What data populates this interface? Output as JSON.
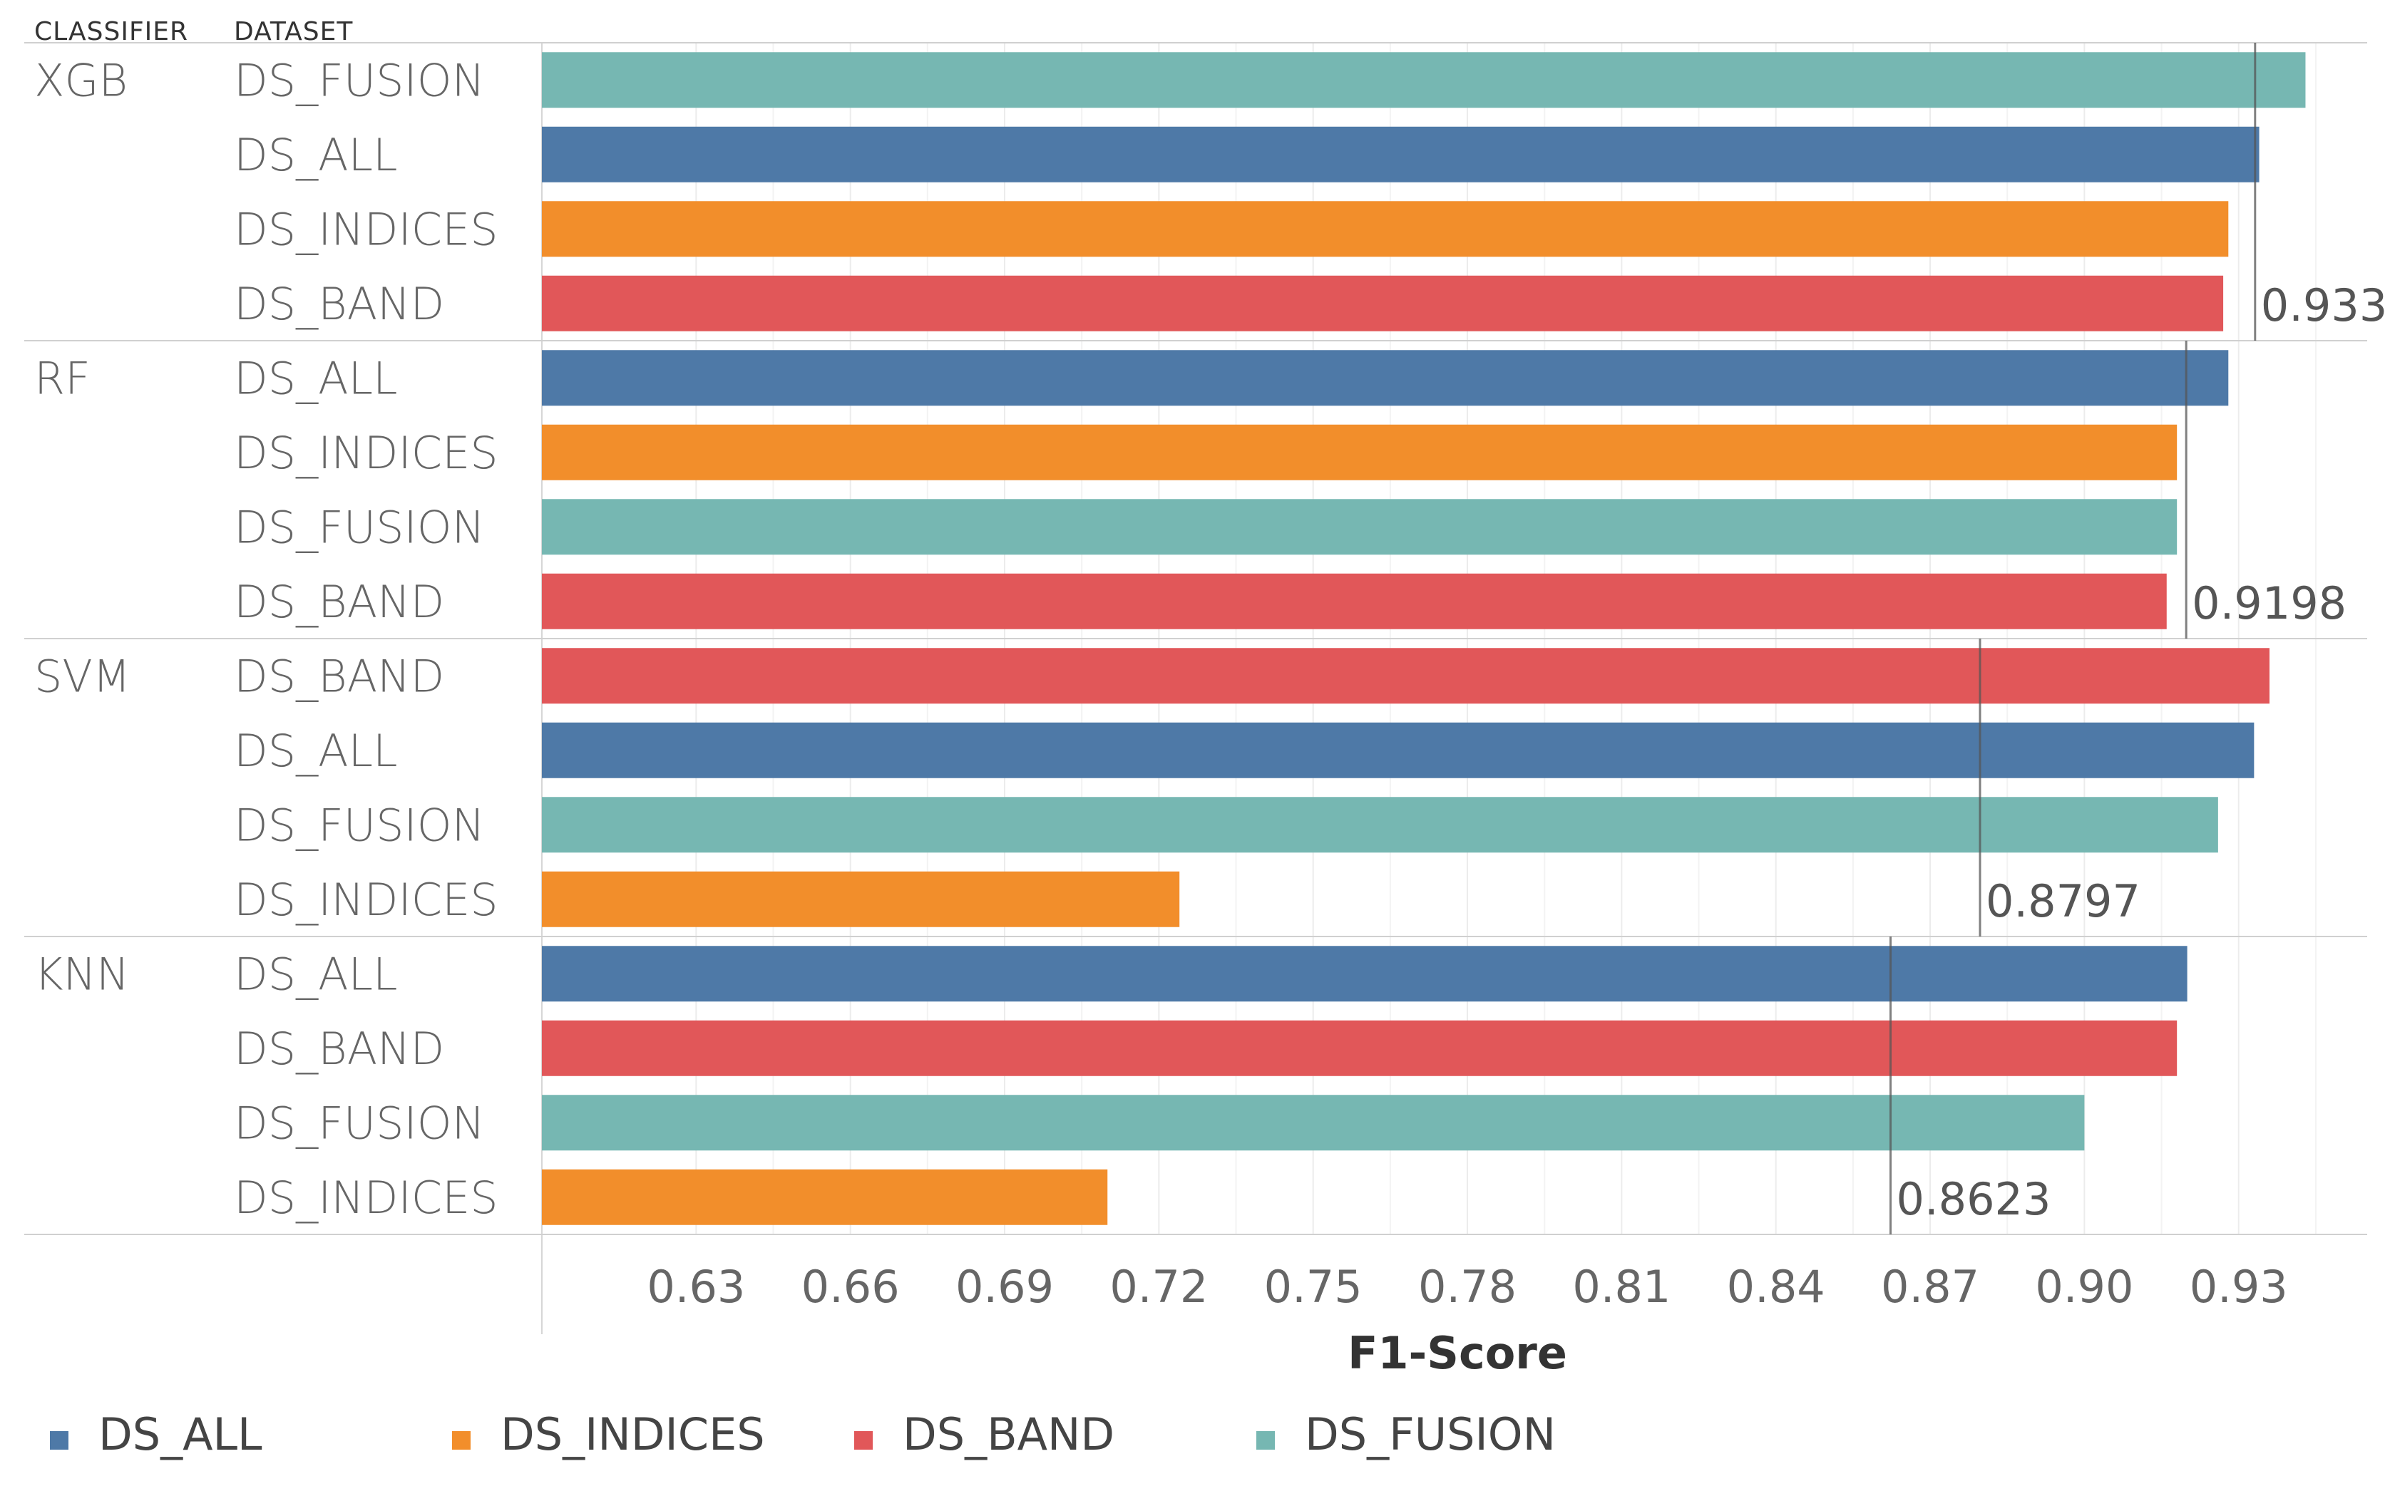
{
  "headers": {
    "classifier": "CLASSIFIER",
    "dataset": "DATASET"
  },
  "chart_data": {
    "type": "bar",
    "orientation": "horizontal",
    "xlabel": "F1-Score",
    "xlim": [
      0.6,
      0.955
    ],
    "xticks": [
      "0.63",
      "0.66",
      "0.69",
      "0.72",
      "0.75",
      "0.78",
      "0.81",
      "0.84",
      "0.87",
      "0.90",
      "0.93"
    ],
    "groups": [
      {
        "classifier": "XGB",
        "reference": 0.9332,
        "reference_label": "0.9332",
        "bars": [
          {
            "dataset": "DS_FUSION",
            "value": 0.943
          },
          {
            "dataset": "DS_ALL",
            "value": 0.934
          },
          {
            "dataset": "DS_INDICES",
            "value": 0.928
          },
          {
            "dataset": "DS_BAND",
            "value": 0.927
          }
        ]
      },
      {
        "classifier": "RF",
        "reference": 0.9198,
        "reference_label": "0.9198",
        "bars": [
          {
            "dataset": "DS_ALL",
            "value": 0.928
          },
          {
            "dataset": "DS_INDICES",
            "value": 0.918
          },
          {
            "dataset": "DS_FUSION",
            "value": 0.918
          },
          {
            "dataset": "DS_BAND",
            "value": 0.916
          }
        ]
      },
      {
        "classifier": "SVM",
        "reference": 0.8797,
        "reference_label": "0.8797",
        "bars": [
          {
            "dataset": "DS_BAND",
            "value": 0.936
          },
          {
            "dataset": "DS_ALL",
            "value": 0.933
          },
          {
            "dataset": "DS_FUSION",
            "value": 0.926
          },
          {
            "dataset": "DS_INDICES",
            "value": 0.724
          }
        ]
      },
      {
        "classifier": "KNN",
        "reference": 0.8623,
        "reference_label": "0.8623",
        "bars": [
          {
            "dataset": "DS_ALL",
            "value": 0.92
          },
          {
            "dataset": "DS_BAND",
            "value": 0.918
          },
          {
            "dataset": "DS_FUSION",
            "value": 0.9
          },
          {
            "dataset": "DS_INDICES",
            "value": 0.71
          }
        ]
      }
    ],
    "legend": [
      {
        "name": "DS_ALL",
        "color": "#4e79a7"
      },
      {
        "name": "DS_INDICES",
        "color": "#f28e2b"
      },
      {
        "name": "DS_BAND",
        "color": "#e15759"
      },
      {
        "name": "DS_FUSION",
        "color": "#76b7b2"
      }
    ],
    "legend_position": "bottom",
    "grid": true
  }
}
